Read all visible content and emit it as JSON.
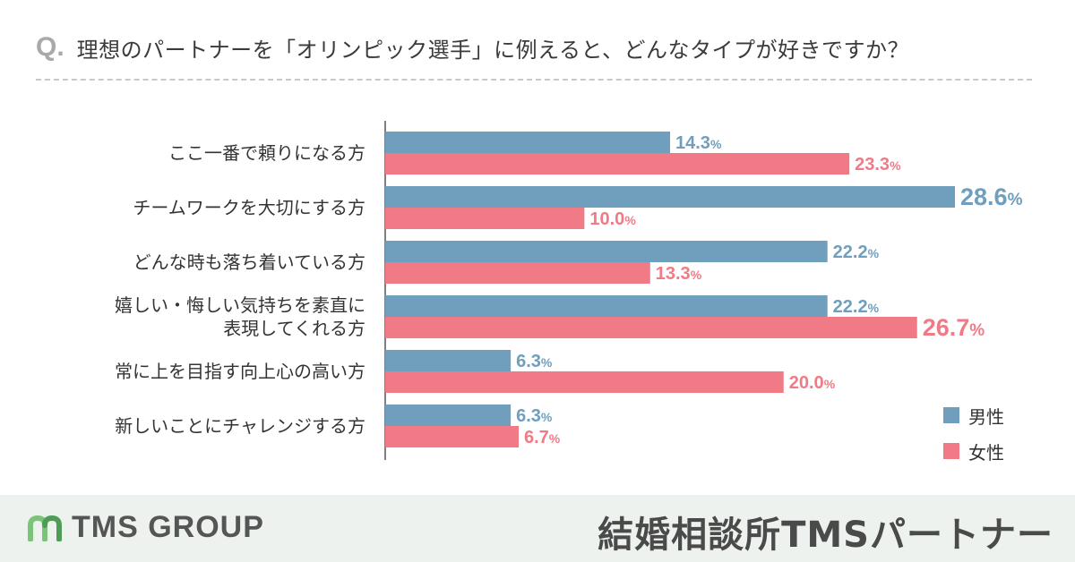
{
  "question": {
    "mark": "Q.",
    "text": "理想のパートナーを「オリンピック選手」に例えると、どんなタイプが好きですか？"
  },
  "legend": [
    {
      "label": "男性",
      "color": "#6f9fbd"
    },
    {
      "label": "女性",
      "color": "#f07b86"
    }
  ],
  "chart_data": {
    "type": "bar",
    "orientation": "horizontal",
    "title": "理想のパートナーを「オリンピック選手」に例えると、どんなタイプが好きですか？",
    "unit": "%",
    "categories": [
      [
        "ここ一番で頼りになる方"
      ],
      [
        "チームワークを大切にする方"
      ],
      [
        "どんな時も落ち着いている方"
      ],
      [
        "嬉しい・悔しい気持ちを素直に",
        "表現してくれる方"
      ],
      [
        "常に上を目指す向上心の高い方"
      ],
      [
        "新しいことにチャレンジする方"
      ]
    ],
    "series": [
      {
        "name": "男性",
        "color": "#6f9fbd",
        "values": [
          14.3,
          28.6,
          22.2,
          22.2,
          6.3,
          6.3
        ]
      },
      {
        "name": "女性",
        "color": "#f07b86",
        "values": [
          23.3,
          10.0,
          13.3,
          26.7,
          20.0,
          6.7
        ]
      }
    ],
    "xlim": [
      0,
      28.6
    ],
    "legend_position": "bottom-right"
  },
  "footer": {
    "brand": "TMS GROUP",
    "service": "結婚相談所TMSパートナー"
  }
}
